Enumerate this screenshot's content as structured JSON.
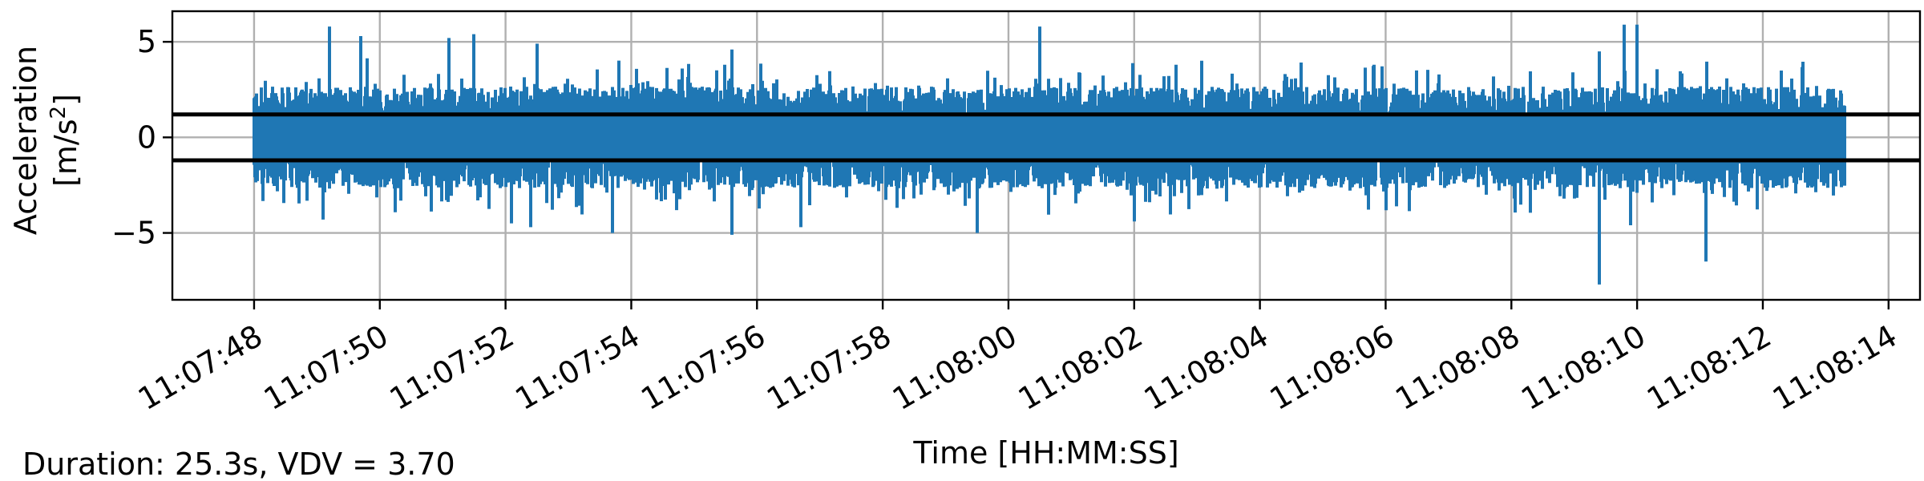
{
  "chart_data": {
    "type": "line",
    "title": "",
    "xlabel": "Time [HH:MM:SS]",
    "ylabel_line1": "Acceleration",
    "ylabel_line2_prefix": "[m/s",
    "ylabel_line2_sup": "2",
    "ylabel_line2_suffix": "]",
    "xlim": [
      "11:07:46.7",
      "11:08:14.5"
    ],
    "ylim": [
      -8.5,
      6.6
    ],
    "grid": true,
    "x_tick_labels": [
      "11:07:48",
      "11:07:50",
      "11:07:52",
      "11:07:54",
      "11:07:56",
      "11:07:58",
      "11:08:00",
      "11:08:02",
      "11:08:04",
      "11:08:06",
      "11:08:08",
      "11:08:10",
      "11:08:12",
      "11:08:14"
    ],
    "y_ticks": [
      5,
      0,
      -5
    ],
    "y_tick_labels": [
      "5",
      "0",
      "−5"
    ],
    "series": [
      {
        "color": "#1f77b4",
        "start": "11:07:48.0",
        "end": "11:08:13.3",
        "typical_amplitude": 2.2,
        "peaks": [
          {
            "t": "11:07:49.2",
            "v": 5.8
          },
          {
            "t": "11:07:49.7",
            "v": 5.3
          },
          {
            "t": "11:07:51.1",
            "v": 5.2
          },
          {
            "t": "11:07:51.5",
            "v": 5.4
          },
          {
            "t": "11:07:52.5",
            "v": 4.9
          },
          {
            "t": "11:07:55.6",
            "v": 4.6
          },
          {
            "t": "11:08:00.5",
            "v": 5.8
          },
          {
            "t": "11:08:09.4",
            "v": 4.5
          },
          {
            "t": "11:08:09.8",
            "v": 5.9
          },
          {
            "t": "11:08:10.0",
            "v": 5.9
          },
          {
            "t": "11:07:48.6",
            "v": -2.6
          },
          {
            "t": "11:07:49.1",
            "v": -4.3
          },
          {
            "t": "11:07:52.1",
            "v": -4.5
          },
          {
            "t": "11:07:52.4",
            "v": -4.7
          },
          {
            "t": "11:07:53.7",
            "v": -5.0
          },
          {
            "t": "11:07:55.6",
            "v": -5.1
          },
          {
            "t": "11:07:56.7",
            "v": -4.7
          },
          {
            "t": "11:07:59.5",
            "v": -5.0
          },
          {
            "t": "11:08:02.0",
            "v": -4.4
          },
          {
            "t": "11:08:09.4",
            "v": -7.7
          },
          {
            "t": "11:08:09.9",
            "v": -4.6
          },
          {
            "t": "11:08:11.1",
            "v": -6.5
          }
        ]
      }
    ],
    "thresholds": [
      {
        "y": 1.2,
        "color": "#000000"
      },
      {
        "y": -1.2,
        "color": "#000000"
      }
    ]
  },
  "footer_note": "Duration: 25.3s, VDV = 3.70"
}
